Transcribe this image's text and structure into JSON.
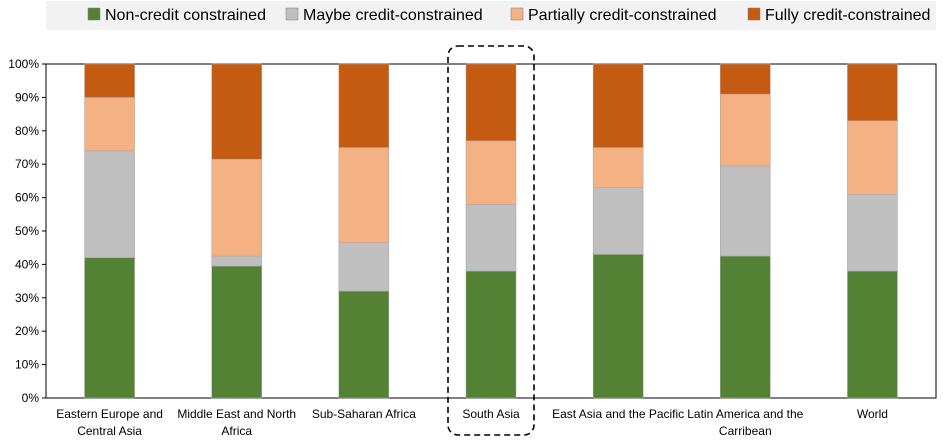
{
  "chart_data": {
    "type": "bar",
    "stacked": true,
    "percent": true,
    "categories": [
      "Eastern Europe and Central Asia",
      "Middle East and North Africa",
      "Sub-Saharan Africa",
      "South Asia",
      "East Asia and the Pacific",
      "Latin America and the Carribean",
      "World"
    ],
    "category_lines": [
      [
        "Eastern Europe and",
        "Central Asia"
      ],
      [
        "Middle East and North",
        "Africa"
      ],
      [
        "Sub-Saharan Africa"
      ],
      [
        "South Asia"
      ],
      [
        "East Asia and the Pacific"
      ],
      [
        "Latin America and the",
        "Carribean"
      ],
      [
        "World"
      ]
    ],
    "series": [
      {
        "name": "Non-credit constrained",
        "color": "#548235",
        "values": [
          42,
          39.5,
          32,
          38,
          43,
          42.5,
          38
        ]
      },
      {
        "name": "Maybe credit-constrained",
        "color": "#bfbfbf",
        "values": [
          32,
          3,
          14.5,
          20,
          20,
          27,
          23
        ]
      },
      {
        "name": "Partially credit-constrained",
        "color": "#f4b183",
        "values": [
          16,
          29,
          28.5,
          19,
          12,
          21.5,
          22
        ]
      },
      {
        "name": "Fully credit-constrained",
        "color": "#c55a11",
        "values": [
          10,
          28.5,
          25,
          23,
          25,
          9,
          17
        ]
      }
    ],
    "yticks": [
      "0%",
      "10%",
      "20%",
      "30%",
      "40%",
      "50%",
      "60%",
      "70%",
      "80%",
      "90%",
      "100%"
    ],
    "ylim": [
      0,
      100
    ],
    "highlight_category": "South Asia",
    "legend_position": "top",
    "grid": false
  }
}
